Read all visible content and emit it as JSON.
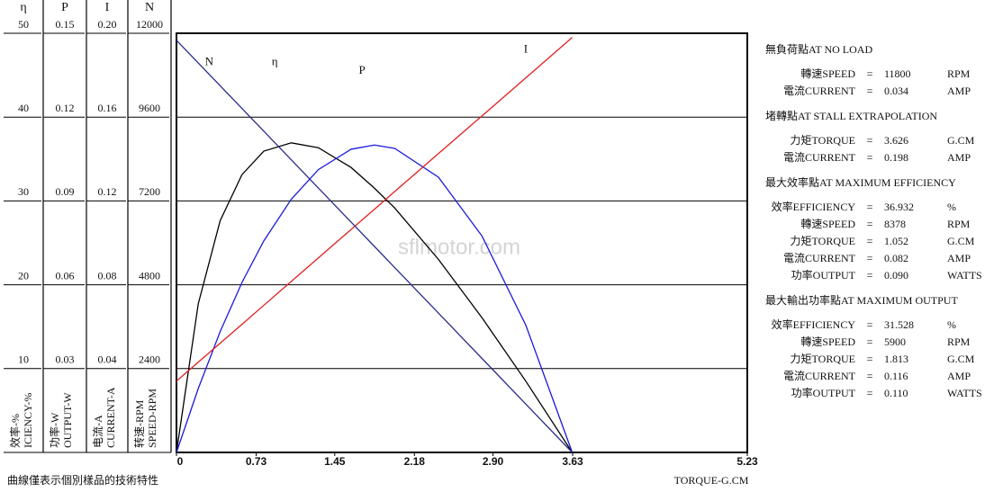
{
  "chart_data": {
    "type": "line",
    "xlabel": "TORQUE-G.CM",
    "footnote": "曲線僅表示個別樣品的技術特性",
    "watermark": "sflmotor.com",
    "xlim": [
      0,
      5.23
    ],
    "xticks": [
      0,
      0.73,
      1.45,
      2.18,
      {
        "value": 2.9,
        "label": "2.90"
      },
      3.63,
      5.23
    ],
    "grid": true,
    "axes": [
      {
        "symbol": "η",
        "label_lines": [
          "效率-%",
          "ICIENCY-%"
        ],
        "ylim": [
          0,
          50
        ],
        "yticks": [
          10,
          20,
          30,
          40,
          50
        ]
      },
      {
        "symbol": "P",
        "label_lines": [
          "功率-W",
          "OUTPUT-W"
        ],
        "ylim": [
          0,
          0.15
        ],
        "yticks": [
          0.03,
          0.06,
          0.09,
          0.12,
          0.15
        ]
      },
      {
        "symbol": "I",
        "label_lines": [
          "电流-A",
          "CURRENT-A"
        ],
        "ylim": [
          0,
          0.2
        ],
        "yticks": [
          0.04,
          0.08,
          0.12,
          0.16,
          {
            "value": 0.2,
            "label": "0.20"
          }
        ]
      },
      {
        "symbol": "N",
        "label_lines": [
          "转速-RPM",
          "SPEED-RPM"
        ],
        "ylim": [
          0,
          12000
        ],
        "yticks": [
          2400,
          4800,
          7200,
          9600,
          12000
        ]
      }
    ],
    "x": [
      0,
      0.2,
      0.4,
      0.6,
      0.8,
      1.052,
      1.3,
      1.6,
      1.813,
      2.0,
      2.4,
      2.8,
      3.2,
      3.626
    ],
    "series": [
      {
        "name": "η",
        "color": "#000000",
        "axis": 0,
        "values": [
          0,
          17.75,
          27.63,
          33.13,
          35.94,
          36.93,
          36.35,
          33.99,
          31.53,
          29.15,
          23.03,
          16.06,
          8.51,
          0
        ]
      },
      {
        "name": "P",
        "color": "#1a1adc",
        "axis": 1,
        "values": [
          0,
          0.0229,
          0.0432,
          0.0608,
          0.0757,
          0.0906,
          0.1012,
          0.1085,
          0.11,
          0.1088,
          0.0985,
          0.0774,
          0.0456,
          0
        ]
      },
      {
        "name": "I",
        "color": "#e02020",
        "axis": 2,
        "values": [
          0.034,
          0.0431,
          0.0521,
          0.0611,
          0.0702,
          0.0816,
          0.0928,
          0.1064,
          0.116,
          0.1245,
          0.1426,
          0.1606,
          0.1787,
          0.198
        ]
      },
      {
        "name": "N",
        "color": "#2a2a8c",
        "axis": 3,
        "values": [
          11800,
          11149,
          10498,
          9847,
          9197,
          8377,
          7569,
          6593,
          5900,
          5291,
          3990,
          2688,
          1386,
          0
        ]
      }
    ]
  },
  "panel": {
    "sections": [
      {
        "title": "無負荷點AT NO LOAD",
        "rows": [
          {
            "label": "轉速SPEED",
            "value": "11800",
            "unit": "RPM"
          },
          {
            "label": "電流CURRENT",
            "value": "0.034",
            "unit": "AMP"
          }
        ]
      },
      {
        "title": "堵轉點AT STALL EXTRAPOLATION",
        "rows": [
          {
            "label": "力矩TORQUE",
            "value": "3.626",
            "unit": "G.CM"
          },
          {
            "label": "電流CURRENT",
            "value": "0.198",
            "unit": "AMP"
          }
        ]
      },
      {
        "title": "最大效率點AT MAXIMUM EFFICIENCY",
        "rows": [
          {
            "label": "效率EFFICIENCY",
            "value": "36.932",
            "unit": "%"
          },
          {
            "label": "轉速SPEED",
            "value": "8378",
            "unit": "RPM"
          },
          {
            "label": "力矩TORQUE",
            "value": "1.052",
            "unit": "G.CM"
          },
          {
            "label": "電流CURRENT",
            "value": "0.082",
            "unit": "AMP"
          },
          {
            "label": "功率OUTPUT",
            "value": "0.090",
            "unit": "WATTS"
          }
        ]
      },
      {
        "title": "最大輸出功率點AT MAXIMUM OUTPUT",
        "rows": [
          {
            "label": "效率EFFICIENCY",
            "value": "31.528",
            "unit": "%"
          },
          {
            "label": "轉速SPEED",
            "value": "5900",
            "unit": "RPM"
          },
          {
            "label": "力矩TORQUE",
            "value": "1.813",
            "unit": "G.CM"
          },
          {
            "label": "電流CURRENT",
            "value": "0.116",
            "unit": "AMP"
          },
          {
            "label": "功率OUTPUT",
            "value": "0.110",
            "unit": "WATTS"
          }
        ]
      }
    ]
  }
}
